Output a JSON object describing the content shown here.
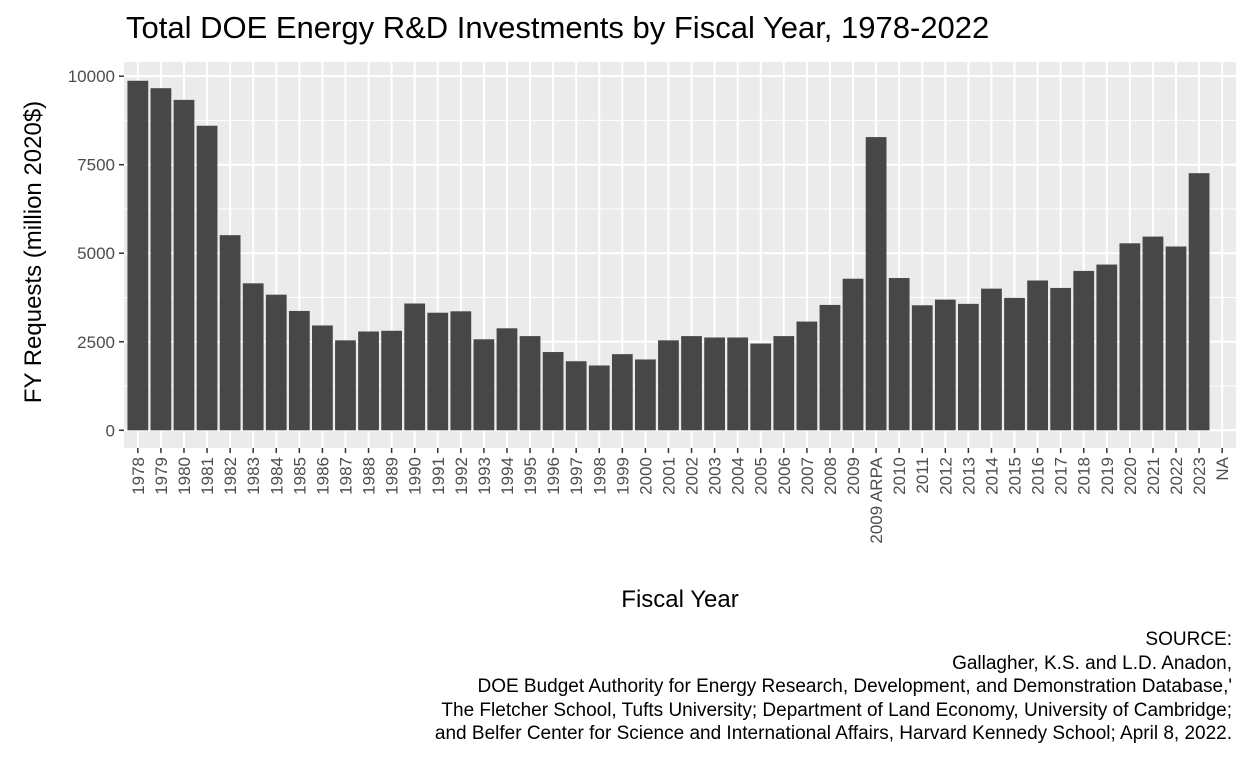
{
  "chart_data": {
    "type": "bar",
    "title": "Total DOE Energy R&D Investments by Fiscal Year, 1978-2022",
    "xlabel": "Fiscal Year",
    "ylabel": "FY Requests (million 2020$)",
    "categories": [
      "1978",
      "1979",
      "1980",
      "1981",
      "1982",
      "1983",
      "1984",
      "1985",
      "1986",
      "1987",
      "1988",
      "1989",
      "1990",
      "1991",
      "1992",
      "1993",
      "1994",
      "1995",
      "1996",
      "1997",
      "1998",
      "1999",
      "2000",
      "2001",
      "2002",
      "2003",
      "2004",
      "2005",
      "2006",
      "2007",
      "2008",
      "2009",
      "2009 ARPA",
      "2010",
      "2011",
      "2012",
      "2013",
      "2014",
      "2015",
      "2016",
      "2017",
      "2018",
      "2019",
      "2020",
      "2021",
      "2022",
      "2023",
      "NA"
    ],
    "values": [
      9870,
      9660,
      9330,
      8600,
      5510,
      4150,
      3830,
      3370,
      2960,
      2540,
      2790,
      2810,
      3580,
      3320,
      3360,
      2570,
      2880,
      2660,
      2210,
      1950,
      1830,
      2150,
      2000,
      2540,
      2660,
      2620,
      2620,
      2450,
      2660,
      3070,
      3540,
      4280,
      8280,
      4300,
      3530,
      3690,
      3570,
      4000,
      3740,
      4230,
      4020,
      4500,
      4680,
      5280,
      5470,
      5190,
      7260,
      null
    ],
    "yticks": [
      0,
      2500,
      5000,
      7500,
      10000
    ],
    "ylim": [
      -500,
      10400
    ],
    "bar_color": "#474747",
    "panel_color": "#ebebeb",
    "grid": true,
    "legend": "none"
  },
  "caption": {
    "lines": [
      "SOURCE:",
      "Gallagher, K.S. and L.D. Anadon,",
      "DOE Budget Authority for Energy Research, Development, and Demonstration Database,'",
      "The Fletcher School, Tufts University; Department of Land Economy, University of Cambridge;",
      "and Belfer Center for Science and International Affairs, Harvard Kennedy School; April 8, 2022."
    ]
  }
}
